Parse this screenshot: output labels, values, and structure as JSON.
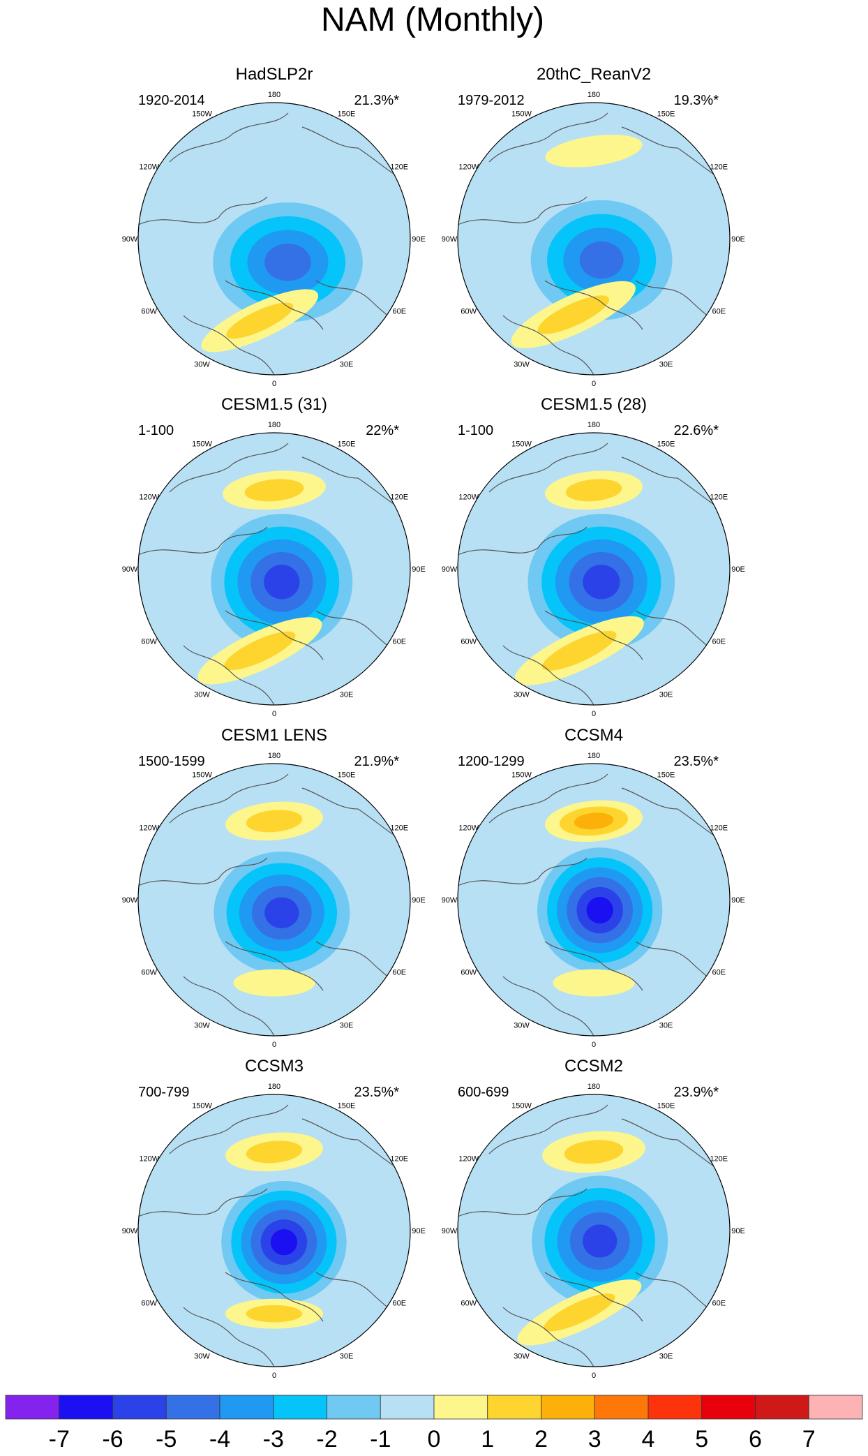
{
  "chart_data": {
    "type": "polar-contour-maps",
    "title": "NAM (Monthly)",
    "projection": "north polar stereographic",
    "longitude_labels": [
      "180",
      "150E",
      "120E",
      "90E",
      "60E",
      "30E",
      "0",
      "30W",
      "60W",
      "90W",
      "120W",
      "150W"
    ],
    "panels": [
      {
        "name": "HadSLP2r",
        "period": "1920-2014",
        "variance": "21.3%*",
        "min_level": -4,
        "max_level": 2,
        "blobs": [
          {
            "lon": 30,
            "colat": 18,
            "a": 0.55,
            "b": 0.44,
            "rot": 0,
            "levels": [
              -1,
              -2,
              -3,
              -4
            ]
          },
          {
            "lon": -10,
            "colat": 55,
            "a": 0.47,
            "b": 0.13,
            "rot": -25,
            "levels": [
              1,
              2
            ]
          }
        ]
      },
      {
        "name": "20thC_ReanV2",
        "period": "1979-2012",
        "variance": "19.3%*",
        "min_level": -4,
        "max_level": 2,
        "blobs": [
          {
            "lon": 20,
            "colat": 15,
            "a": 0.52,
            "b": 0.44,
            "rot": 0,
            "levels": [
              -1,
              -2,
              -3,
              -4
            ]
          },
          {
            "lon": 180,
            "colat": 58,
            "a": 0.36,
            "b": 0.11,
            "rot": -8,
            "levels": [
              1
            ]
          },
          {
            "lon": -15,
            "colat": 52,
            "a": 0.5,
            "b": 0.14,
            "rot": -25,
            "levels": [
              1,
              2
            ]
          }
        ]
      },
      {
        "name": "CESM1.5 (31)",
        "period": "1-100",
        "variance": "22%*",
        "min_level": -5,
        "max_level": 2,
        "blobs": [
          {
            "lon": 30,
            "colat": 10,
            "a": 0.52,
            "b": 0.5,
            "rot": 0,
            "levels": [
              -1,
              -2,
              -3,
              -4,
              -5
            ]
          },
          {
            "lon": 180,
            "colat": 52,
            "a": 0.38,
            "b": 0.14,
            "rot": -5,
            "levels": [
              1,
              2
            ]
          },
          {
            "lon": -10,
            "colat": 55,
            "a": 0.5,
            "b": 0.14,
            "rot": -25,
            "levels": [
              1,
              2
            ]
          }
        ]
      },
      {
        "name": "CESM1.5 (28)",
        "period": "1-100",
        "variance": "22.6%*",
        "min_level": -5,
        "max_level": 2,
        "blobs": [
          {
            "lon": 30,
            "colat": 10,
            "a": 0.54,
            "b": 0.5,
            "rot": 0,
            "levels": [
              -1,
              -2,
              -3,
              -4,
              -5
            ]
          },
          {
            "lon": 180,
            "colat": 52,
            "a": 0.36,
            "b": 0.14,
            "rot": -5,
            "levels": [
              1,
              2
            ]
          },
          {
            "lon": -10,
            "colat": 55,
            "a": 0.52,
            "b": 0.14,
            "rot": -25,
            "levels": [
              1,
              2
            ]
          }
        ]
      },
      {
        "name": "CESM1 LENS",
        "period": "1500-1599",
        "variance": "21.9%*",
        "min_level": -5,
        "max_level": 2,
        "blobs": [
          {
            "lon": 30,
            "colat": 10,
            "a": 0.5,
            "b": 0.45,
            "rot": 0,
            "levels": [
              -1,
              -2,
              -3,
              -4,
              -5
            ]
          },
          {
            "lon": 180,
            "colat": 52,
            "a": 0.36,
            "b": 0.14,
            "rot": -5,
            "levels": [
              1,
              2
            ]
          },
          {
            "lon": 0,
            "colat": 55,
            "a": 0.3,
            "b": 0.1,
            "rot": 0,
            "levels": [
              1
            ]
          }
        ]
      },
      {
        "name": "CCSM4",
        "period": "1200-1299",
        "variance": "23.5%*",
        "min_level": -6,
        "max_level": 3,
        "blobs": [
          {
            "lon": 30,
            "colat": 8,
            "a": 0.46,
            "b": 0.46,
            "rot": 0,
            "levels": [
              -1,
              -2,
              -3,
              -4,
              -5,
              -6
            ]
          },
          {
            "lon": 180,
            "colat": 52,
            "a": 0.36,
            "b": 0.15,
            "rot": -5,
            "levels": [
              1,
              2,
              3
            ]
          },
          {
            "lon": 0,
            "colat": 55,
            "a": 0.3,
            "b": 0.1,
            "rot": 0,
            "levels": [
              1
            ]
          }
        ]
      },
      {
        "name": "CCSM3",
        "period": "700-799",
        "variance": "23.5%*",
        "min_level": -6,
        "max_level": 2,
        "blobs": [
          {
            "lon": 40,
            "colat": 10,
            "a": 0.46,
            "b": 0.45,
            "rot": 0,
            "levels": [
              -1,
              -2,
              -3,
              -4,
              -5,
              -6
            ]
          },
          {
            "lon": 180,
            "colat": 52,
            "a": 0.36,
            "b": 0.14,
            "rot": -5,
            "levels": [
              1,
              2
            ]
          },
          {
            "lon": 0,
            "colat": 55,
            "a": 0.36,
            "b": 0.11,
            "rot": 0,
            "levels": [
              1,
              2
            ]
          }
        ]
      },
      {
        "name": "CCSM2",
        "period": "600-699",
        "variance": "23.9%*",
        "min_level": -5,
        "max_level": 2,
        "blobs": [
          {
            "lon": 30,
            "colat": 8,
            "a": 0.5,
            "b": 0.48,
            "rot": 0,
            "levels": [
              -1,
              -2,
              -3,
              -4,
              -5
            ]
          },
          {
            "lon": 180,
            "colat": 52,
            "a": 0.38,
            "b": 0.15,
            "rot": -5,
            "levels": [
              1,
              2
            ]
          },
          {
            "lon": -10,
            "colat": 55,
            "a": 0.5,
            "b": 0.13,
            "rot": -25,
            "levels": [
              1,
              2
            ]
          }
        ]
      }
    ],
    "colorbar": {
      "ticks": [
        "-7",
        "-6",
        "-5",
        "-4",
        "-3",
        "-2",
        "-1",
        "0",
        "1",
        "2",
        "3",
        "4",
        "5",
        "6",
        "7"
      ],
      "colors": [
        "#8422ee",
        "#1a10f2",
        "#2a42e8",
        "#3470e6",
        "#1f99f2",
        "#05c4f9",
        "#6fc9f2",
        "#b7e0f5",
        "#fdf68d",
        "#fdd52e",
        "#fdb00a",
        "#fd7808",
        "#fd330c",
        "#e8000c",
        "#cf1818",
        "#fdb3b4"
      ]
    }
  }
}
